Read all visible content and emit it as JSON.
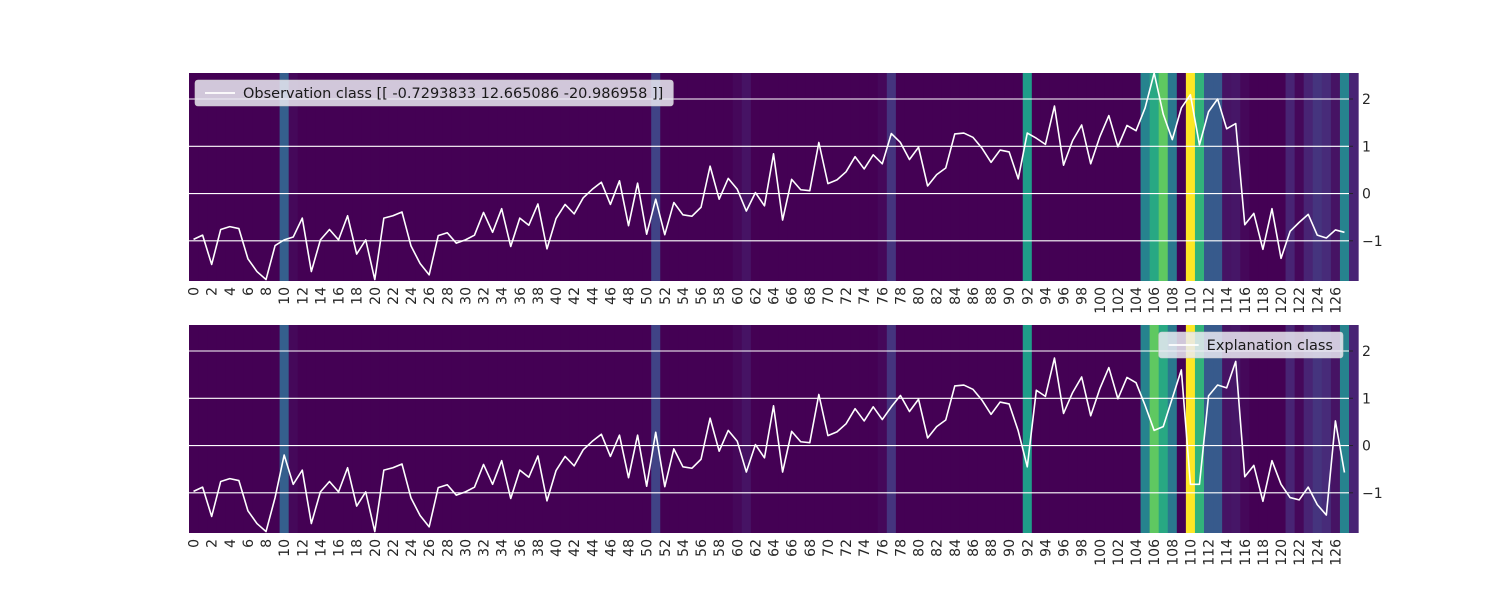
{
  "chart_data": [
    {
      "type": "line",
      "overlay": "heatmap",
      "legend": "Observation class [[ -0.7293833  12.665086  -20.986958 ]]",
      "legend_position": "top-left",
      "grid": true,
      "xlim": [
        0,
        127
      ],
      "ylim": [
        -1.85,
        2.55
      ],
      "x_ticks": [
        0,
        2,
        4,
        6,
        8,
        10,
        12,
        14,
        16,
        18,
        20,
        22,
        24,
        26,
        28,
        30,
        32,
        34,
        36,
        38,
        40,
        42,
        44,
        46,
        48,
        50,
        52,
        54,
        56,
        58,
        60,
        62,
        64,
        66,
        68,
        70,
        72,
        74,
        76,
        78,
        80,
        82,
        84,
        86,
        88,
        90,
        92,
        94,
        96,
        98,
        100,
        102,
        104,
        106,
        108,
        110,
        112,
        114,
        116,
        118,
        120,
        122,
        124,
        126
      ],
      "y_ticks": [
        -1,
        0,
        1,
        2
      ],
      "y": [
        -0.97,
        -0.88,
        -1.5,
        -0.76,
        -0.7,
        -0.74,
        -1.38,
        -1.65,
        -1.82,
        -1.1,
        -0.98,
        -0.92,
        -0.52,
        -1.65,
        -0.98,
        -0.76,
        -0.98,
        -0.47,
        -1.28,
        -0.98,
        -1.82,
        -0.52,
        -0.47,
        -0.39,
        -1.11,
        -1.48,
        -1.72,
        -0.89,
        -0.83,
        -1.05,
        -0.98,
        -0.88,
        -0.4,
        -0.82,
        -0.32,
        -1.12,
        -0.52,
        -0.67,
        -0.22,
        -1.17,
        -0.53,
        -0.23,
        -0.43,
        -0.09,
        0.09,
        0.24,
        -0.23,
        0.27,
        -0.68,
        0.22,
        -0.86,
        -0.12,
        -0.87,
        -0.19,
        -0.45,
        -0.48,
        -0.29,
        0.58,
        -0.12,
        0.32,
        0.09,
        -0.37,
        0.02,
        -0.26,
        0.84,
        -0.56,
        0.3,
        0.08,
        0.06,
        1.08,
        0.21,
        0.29,
        0.46,
        0.78,
        0.52,
        0.82,
        0.63,
        1.27,
        1.08,
        0.72,
        0.98,
        0.16,
        0.4,
        0.54,
        1.26,
        1.28,
        1.19,
        0.96,
        0.66,
        0.92,
        0.88,
        0.31,
        1.28,
        1.17,
        1.04,
        1.85,
        0.6,
        1.12,
        1.45,
        0.63,
        1.2,
        1.65,
        0.99,
        1.44,
        1.33,
        1.81,
        2.55,
        1.68,
        1.14,
        1.81,
        2.09,
        1.03,
        1.73,
        2.0,
        1.37,
        1.48,
        -0.66,
        -0.42,
        -1.18,
        -0.32,
        -1.37,
        -0.8,
        -0.61,
        -0.44,
        -0.88,
        -0.94,
        -0.77,
        -0.82
      ],
      "heat": [
        0,
        0,
        0,
        0,
        0,
        0,
        0,
        0,
        0,
        0,
        0.3,
        0.02,
        0,
        0,
        0,
        0,
        0,
        0,
        0,
        0,
        0,
        0,
        0,
        0,
        0,
        0,
        0,
        0,
        0,
        0,
        0,
        0,
        0,
        0,
        0,
        0,
        0,
        0,
        0,
        0,
        0,
        0,
        0,
        0,
        0,
        0,
        0,
        0,
        0,
        0,
        0,
        0.2,
        0,
        0,
        0,
        0,
        0,
        0,
        0,
        0,
        0.02,
        0.05,
        0,
        0,
        0,
        0,
        0,
        0,
        0,
        0,
        0,
        0,
        0,
        0,
        0,
        0,
        0.02,
        0.15,
        0,
        0,
        0,
        0,
        0,
        0,
        0,
        0,
        0,
        0,
        0,
        0,
        0,
        0,
        0.55,
        0,
        0,
        0,
        0,
        0,
        0,
        0,
        0,
        0,
        0,
        0,
        0,
        0.45,
        0.6,
        0.75,
        0.4,
        0,
        1.0,
        0.65,
        0.28,
        0.28,
        0.05,
        0.06,
        0.02,
        0,
        0,
        0,
        0,
        0.1,
        0.02,
        0.1,
        0.15,
        0.12,
        0.05,
        0.45,
        0.1
      ]
    },
    {
      "type": "line",
      "overlay": "heatmap",
      "legend": "Explanation class",
      "legend_position": "top-right",
      "grid": true,
      "xlim": [
        0,
        127
      ],
      "ylim": [
        -1.85,
        2.55
      ],
      "x_ticks": [
        0,
        2,
        4,
        6,
        8,
        10,
        12,
        14,
        16,
        18,
        20,
        22,
        24,
        26,
        28,
        30,
        32,
        34,
        36,
        38,
        40,
        42,
        44,
        46,
        48,
        50,
        52,
        54,
        56,
        58,
        60,
        62,
        64,
        66,
        68,
        70,
        72,
        74,
        76,
        78,
        80,
        82,
        84,
        86,
        88,
        90,
        92,
        94,
        96,
        98,
        100,
        102,
        104,
        106,
        108,
        110,
        112,
        114,
        116,
        118,
        120,
        122,
        124,
        126
      ],
      "y_ticks": [
        -1,
        0,
        1,
        2
      ],
      "y": [
        -0.97,
        -0.88,
        -1.5,
        -0.76,
        -0.7,
        -0.74,
        -1.38,
        -1.65,
        -1.82,
        -1.1,
        -0.2,
        -0.82,
        -0.52,
        -1.65,
        -0.98,
        -0.76,
        -0.98,
        -0.47,
        -1.28,
        -0.98,
        -1.82,
        -0.52,
        -0.47,
        -0.39,
        -1.11,
        -1.48,
        -1.72,
        -0.89,
        -0.83,
        -1.05,
        -0.98,
        -0.88,
        -0.4,
        -0.82,
        -0.32,
        -1.12,
        -0.52,
        -0.67,
        -0.22,
        -1.17,
        -0.53,
        -0.23,
        -0.43,
        -0.09,
        0.09,
        0.24,
        -0.23,
        0.22,
        -0.68,
        0.22,
        -0.86,
        0.28,
        -0.87,
        -0.07,
        -0.45,
        -0.48,
        -0.29,
        0.58,
        -0.12,
        0.32,
        0.09,
        -0.56,
        0.02,
        -0.26,
        0.84,
        -0.56,
        0.3,
        0.08,
        0.06,
        1.08,
        0.21,
        0.29,
        0.46,
        0.78,
        0.52,
        0.82,
        0.55,
        0.82,
        1.06,
        0.72,
        0.98,
        0.16,
        0.4,
        0.54,
        1.26,
        1.28,
        1.19,
        0.96,
        0.66,
        0.92,
        0.88,
        0.31,
        -0.45,
        1.17,
        1.04,
        1.85,
        0.68,
        1.12,
        1.45,
        0.63,
        1.2,
        1.65,
        0.99,
        1.44,
        1.33,
        0.85,
        0.32,
        0.4,
        1.0,
        1.6,
        -0.82,
        -0.82,
        1.05,
        1.28,
        1.22,
        1.78,
        -0.66,
        -0.42,
        -1.18,
        -0.32,
        -0.82,
        -1.1,
        -1.15,
        -0.88,
        -1.25,
        -1.47,
        0.52,
        -0.57
      ],
      "heat": [
        0,
        0,
        0,
        0,
        0,
        0,
        0,
        0,
        0,
        0,
        0.3,
        0.02,
        0,
        0,
        0,
        0,
        0,
        0,
        0,
        0,
        0,
        0,
        0,
        0,
        0,
        0,
        0,
        0,
        0,
        0,
        0,
        0,
        0,
        0,
        0,
        0,
        0,
        0,
        0,
        0,
        0,
        0,
        0,
        0,
        0,
        0,
        0,
        0,
        0,
        0,
        0,
        0.2,
        0,
        0,
        0,
        0,
        0,
        0,
        0,
        0,
        0.02,
        0.05,
        0,
        0,
        0,
        0,
        0,
        0,
        0,
        0,
        0,
        0,
        0,
        0,
        0,
        0,
        0.02,
        0.15,
        0,
        0,
        0,
        0,
        0,
        0,
        0,
        0,
        0,
        0,
        0,
        0,
        0,
        0,
        0.55,
        0,
        0,
        0,
        0,
        0,
        0,
        0,
        0,
        0,
        0,
        0,
        0,
        0.45,
        0.75,
        0.6,
        0.4,
        0,
        1.0,
        0.65,
        0.28,
        0.28,
        0.05,
        0.06,
        0.02,
        0,
        0,
        0,
        0,
        0.1,
        0.02,
        0.1,
        0.15,
        0.12,
        0.05,
        0.45,
        0.1
      ]
    }
  ]
}
